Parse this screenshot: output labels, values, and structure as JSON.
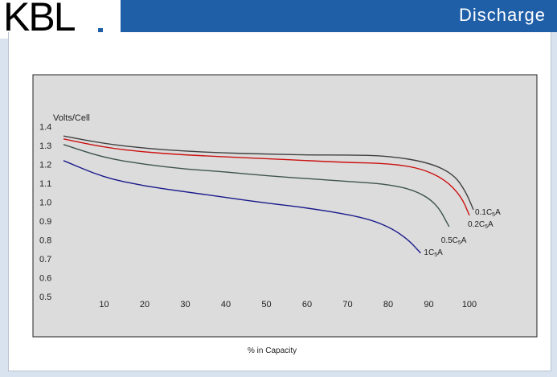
{
  "header": {
    "logo_text": "KBL",
    "section_title": "Discharge"
  },
  "colors": {
    "header_bar": "#1f5fa8",
    "plot_background": "#dcdcdc",
    "curve_0_1": "#404040",
    "curve_0_2": "#cc1111",
    "curve_0_5": "#3e5450",
    "curve_1": "#1a1a8c"
  },
  "chart_data": {
    "type": "line",
    "title": "",
    "xlabel": "% in Capacity",
    "ylabel": "Volts/Cell",
    "xlim": [
      0,
      110
    ],
    "ylim": [
      0.5,
      1.4
    ],
    "x_ticks": [
      "10",
      "20",
      "30",
      "40",
      "50",
      "60",
      "70",
      "80",
      "90",
      "100"
    ],
    "y_ticks": [
      "0.5",
      "0.6",
      "0.7",
      "0.8",
      "0.9",
      "1.0",
      "1.1",
      "1.2",
      "1.3",
      "1.4"
    ],
    "grid": false,
    "series": [
      {
        "name": "0.1C5A",
        "label_main": "0.1C",
        "label_sub": "5",
        "label_tail": "A",
        "color": "#404040",
        "points": [
          [
            0,
            1.35
          ],
          [
            10,
            1.31
          ],
          [
            20,
            1.285
          ],
          [
            30,
            1.27
          ],
          [
            40,
            1.26
          ],
          [
            50,
            1.255
          ],
          [
            60,
            1.25
          ],
          [
            70,
            1.25
          ],
          [
            80,
            1.245
          ],
          [
            90,
            1.21
          ],
          [
            96,
            1.15
          ],
          [
            99,
            1.06
          ],
          [
            101,
            0.96
          ]
        ]
      },
      {
        "name": "0.2C5A",
        "label_main": "0.2C",
        "label_sub": "5",
        "label_tail": "A",
        "color": "#cc1111",
        "points": [
          [
            0,
            1.335
          ],
          [
            10,
            1.29
          ],
          [
            20,
            1.265
          ],
          [
            30,
            1.25
          ],
          [
            40,
            1.24
          ],
          [
            50,
            1.23
          ],
          [
            60,
            1.22
          ],
          [
            70,
            1.21
          ],
          [
            80,
            1.205
          ],
          [
            88,
            1.18
          ],
          [
            94,
            1.12
          ],
          [
            98,
            1.03
          ],
          [
            100,
            0.93
          ]
        ]
      },
      {
        "name": "0.5C5A",
        "label_main": "0.5C",
        "label_sub": "5",
        "label_tail": "A",
        "color": "#3e5450",
        "points": [
          [
            0,
            1.305
          ],
          [
            10,
            1.235
          ],
          [
            20,
            1.2
          ],
          [
            30,
            1.175
          ],
          [
            40,
            1.16
          ],
          [
            50,
            1.14
          ],
          [
            60,
            1.125
          ],
          [
            70,
            1.11
          ],
          [
            80,
            1.095
          ],
          [
            87,
            1.06
          ],
          [
            92,
            0.99
          ],
          [
            95,
            0.87
          ]
        ]
      },
      {
        "name": "1C5A",
        "label_main": "1C",
        "label_sub": "5",
        "label_tail": "A",
        "color": "#1a1a8c",
        "points": [
          [
            0,
            1.22
          ],
          [
            10,
            1.13
          ],
          [
            20,
            1.085
          ],
          [
            30,
            1.055
          ],
          [
            40,
            1.025
          ],
          [
            50,
            0.995
          ],
          [
            60,
            0.97
          ],
          [
            70,
            0.935
          ],
          [
            76,
            0.905
          ],
          [
            81,
            0.86
          ],
          [
            85,
            0.8
          ],
          [
            88,
            0.73
          ]
        ]
      }
    ]
  }
}
